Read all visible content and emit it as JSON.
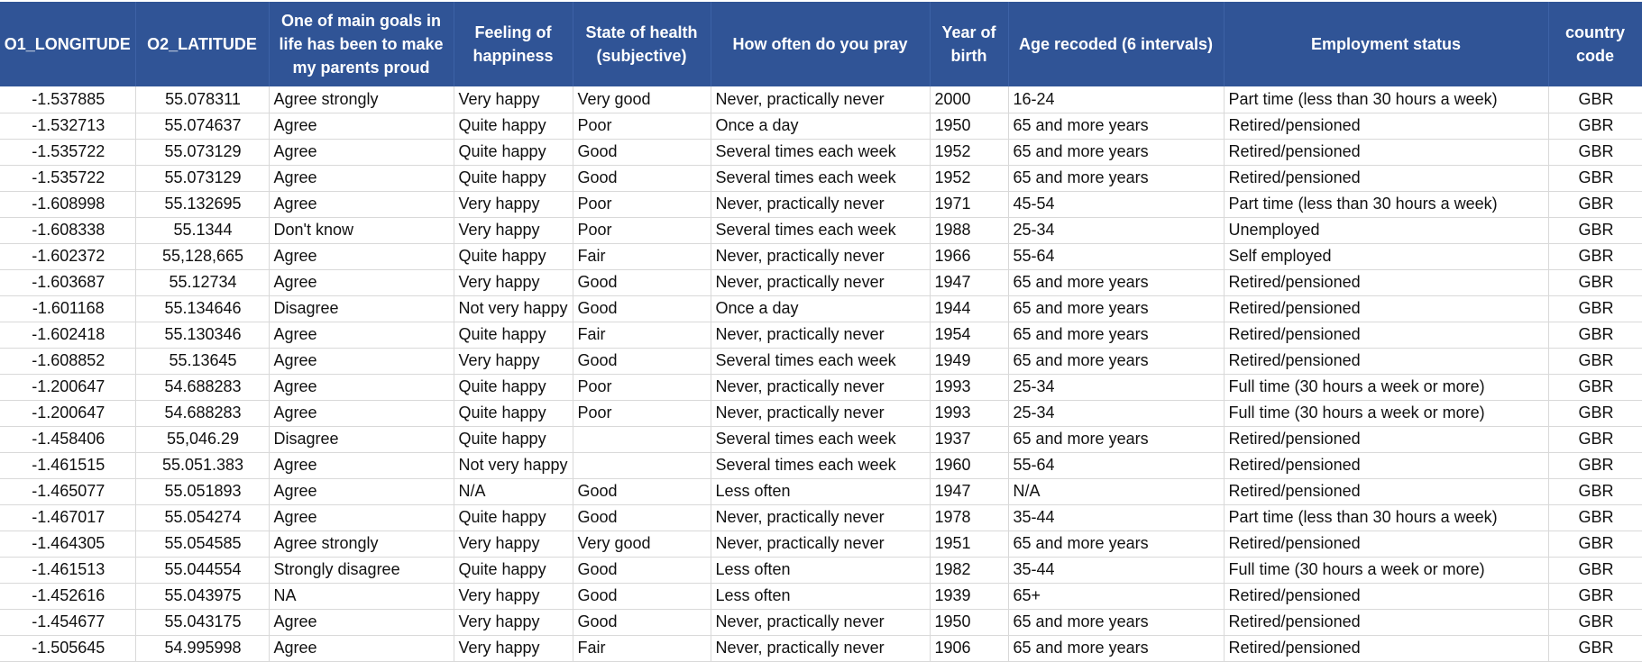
{
  "columns": [
    "O1_LONGITUDE",
    "O2_LATITUDE",
    "One of main goals in life has been to make my parents proud",
    "Feeling of happiness",
    "State of health (subjective)",
    "How often do you pray",
    "Year of birth",
    "Age recoded (6 intervals)",
    "Employment status",
    "country code"
  ],
  "rows": [
    [
      "-1.537885",
      "55.078311",
      "Agree strongly",
      "Very happy",
      "Very good",
      "Never, practically never",
      "2000",
      "16-24",
      "Part time (less than 30 hours a week)",
      "GBR"
    ],
    [
      "-1.532713",
      "55.074637",
      "Agree",
      "Quite happy",
      "Poor",
      "Once a day",
      "1950",
      "65 and more years",
      "Retired/pensioned",
      "GBR"
    ],
    [
      "-1.535722",
      "55.073129",
      "Agree",
      "Quite happy",
      "Good",
      "Several times each week",
      "1952",
      "65 and more years",
      "Retired/pensioned",
      "GBR"
    ],
    [
      "-1.535722",
      "55.073129",
      "Agree",
      "Quite happy",
      "Good",
      "Several times each week",
      "1952",
      "65 and more years",
      "Retired/pensioned",
      "GBR"
    ],
    [
      "-1.608998",
      "55.132695",
      "Agree",
      "Very happy",
      "Poor",
      "Never, practically never",
      "1971",
      "45-54",
      "Part time (less than 30 hours a week)",
      "GBR"
    ],
    [
      "-1.608338",
      "55.1344",
      "Don't know",
      "Very happy",
      "Poor",
      "Several times each week",
      "1988",
      "25-34",
      "Unemployed",
      "GBR"
    ],
    [
      "-1.602372",
      "55,128,665",
      "Agree",
      "Quite happy",
      "Fair",
      "Never, practically never",
      "1966",
      "55-64",
      "Self employed",
      "GBR"
    ],
    [
      "-1.603687",
      "55.12734",
      "Agree",
      "Very happy",
      "Good",
      "Never, practically never",
      "1947",
      "65 and more years",
      "Retired/pensioned",
      "GBR"
    ],
    [
      "-1.601168",
      "55.134646",
      "Disagree",
      "Not very happy",
      "Good",
      "Once a day",
      "1944",
      "65 and more years",
      "Retired/pensioned",
      "GBR"
    ],
    [
      "-1.602418",
      "55.130346",
      "Agree",
      "Quite happy",
      "Fair",
      "Never, practically never",
      "1954",
      "65 and more years",
      "Retired/pensioned",
      "GBR"
    ],
    [
      "-1.608852",
      "55.13645",
      "Agree",
      "Very happy",
      "Good",
      "Several times each week",
      "1949",
      "65 and more years",
      "Retired/pensioned",
      "GBR"
    ],
    [
      "-1.200647",
      "54.688283",
      "Agree",
      "Quite happy",
      "Poor",
      "Never, practically never",
      "1993",
      "25-34",
      "Full time (30 hours a week or more)",
      "GBR"
    ],
    [
      "-1.200647",
      "54.688283",
      "Agree",
      "Quite happy",
      "Poor",
      "Never, practically never",
      "1993",
      "25-34",
      "Full time (30 hours a week or more)",
      "GBR"
    ],
    [
      "-1.458406",
      "55,046.29",
      "Disagree",
      "Quite happy",
      "",
      "Several times each week",
      "1937",
      "65 and more years",
      "Retired/pensioned",
      "GBR"
    ],
    [
      "-1.461515",
      "55.051.383",
      "Agree",
      "Not very happy",
      "",
      "Several times each week",
      "1960",
      "55-64",
      "Retired/pensioned",
      "GBR"
    ],
    [
      "-1.465077",
      "55.051893",
      "Agree",
      "N/A",
      "Good",
      "Less often",
      "1947",
      "N/A",
      "Retired/pensioned",
      "GBR"
    ],
    [
      "-1.467017",
      "55.054274",
      "Agree",
      "Quite happy",
      "Good",
      "Never, practically never",
      "1978",
      "35-44",
      "Part time (less than 30 hours a week)",
      "GBR"
    ],
    [
      "-1.464305",
      "55.054585",
      "Agree strongly",
      "Very happy",
      "Very good",
      "Never, practically never",
      "1951",
      "65 and more years",
      "Retired/pensioned",
      "GBR"
    ],
    [
      "-1.461513",
      "55.044554",
      "Strongly disagree",
      "Quite happy",
      "Good",
      "Less often",
      "1982",
      "35-44",
      "Full time (30 hours a week or more)",
      "GBR"
    ],
    [
      "-1.452616",
      "55.043975",
      "NA",
      "Very happy",
      "Good",
      "Less often",
      "1939",
      "65+",
      "Retired/pensioned",
      "GBR"
    ],
    [
      "-1.454677",
      "55.043175",
      "Agree",
      "Very happy",
      "Good",
      "Never, practically never",
      "1950",
      "65 and more years",
      "Retired/pensioned",
      "GBR"
    ],
    [
      "-1.505645",
      "54.995998",
      "Agree",
      "Very happy",
      "Fair",
      "Never, practically never",
      "1906",
      "65 and more years",
      "Retired/pensioned",
      "GBR"
    ]
  ],
  "colors": {
    "header_background": "#305496",
    "header_text": "#ffffff",
    "grid_line": "#d9d9d9"
  }
}
